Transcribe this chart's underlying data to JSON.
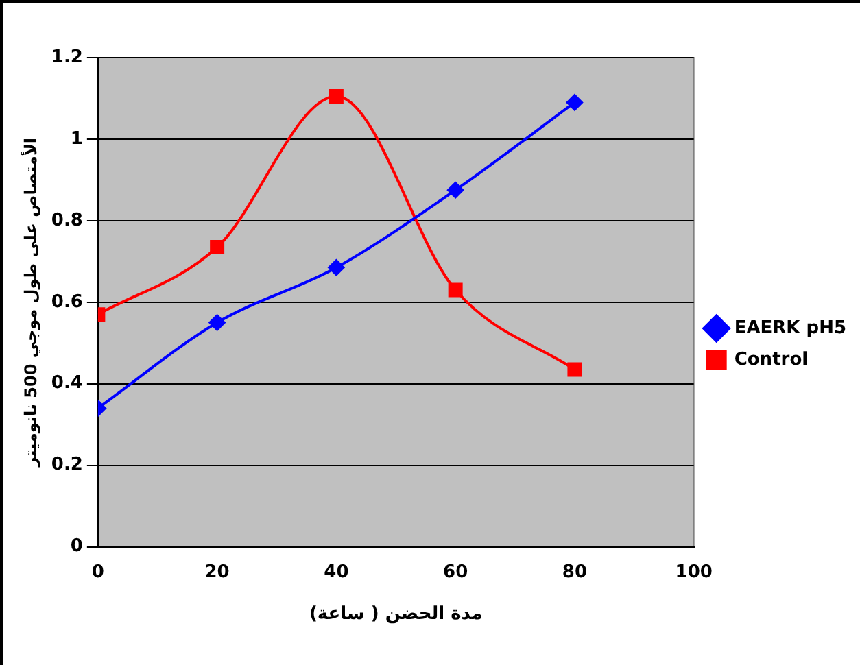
{
  "chart_data": {
    "type": "line",
    "xlabel": "مدة الحضن ( ساعة)",
    "ylabel": "الأمتصاص على طول موجي 500 نانوميتر",
    "x": [
      0,
      20,
      40,
      60,
      80
    ],
    "series": [
      {
        "name": "EAERK pH5",
        "color": "#0000ff",
        "values": [
          0.34,
          0.55,
          0.685,
          0.875,
          1.09
        ],
        "marker": "diamond"
      },
      {
        "name": "Control",
        "color": "#ff0000",
        "values": [
          0.57,
          0.735,
          1.105,
          0.63,
          0.435
        ],
        "marker": "square"
      }
    ],
    "xlim": [
      0,
      100
    ],
    "xticks": [
      0,
      20,
      40,
      60,
      80,
      100
    ],
    "ylim": [
      0,
      1.2
    ],
    "yticks": [
      0,
      0.2,
      0.4,
      0.6,
      0.8,
      1,
      1.2
    ],
    "grid": "y",
    "legend": "right",
    "line_style": "solid"
  }
}
